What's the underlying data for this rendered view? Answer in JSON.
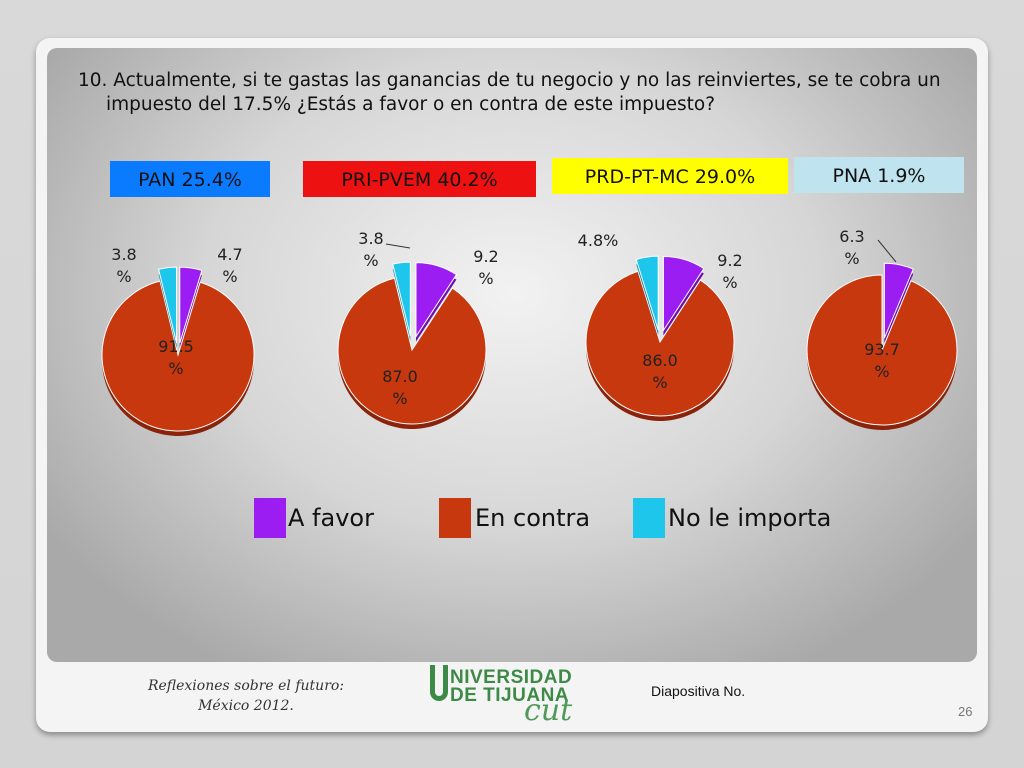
{
  "question": "10. Actualmente, si te gastas las ganancias de tu negocio y no las reinviertes, se te cobra un impuesto del 17.5% ¿Estás a favor o en contra de este impuesto?",
  "parties": [
    "PAN 25.4%",
    "PRI-PVEM  40.2%",
    "PRD-PT-MC 29.0%",
    "PNA 1.9%"
  ],
  "colors": {
    "a_favor": "#9b1df2",
    "en_contra": "#c8380e",
    "no_importa": "#1ec6ec"
  },
  "chart_data": [
    {
      "type": "pie",
      "title": "PAN 25.4%",
      "categories": [
        "A favor",
        "En contra",
        "No le importa"
      ],
      "values": [
        4.7,
        91.5,
        3.8
      ],
      "labels": [
        "4.7 %",
        "91.5 %",
        "3.8 %"
      ]
    },
    {
      "type": "pie",
      "title": "PRI-PVEM  40.2%",
      "categories": [
        "A favor",
        "En contra",
        "No le importa"
      ],
      "values": [
        9.2,
        87.0,
        3.8
      ],
      "labels": [
        "9.2 %",
        "87.0 %",
        "3.8 %"
      ]
    },
    {
      "type": "pie",
      "title": "PRD-PT-MC 29.0%",
      "categories": [
        "A favor",
        "En contra",
        "No le importa"
      ],
      "values": [
        9.2,
        86.0,
        4.8
      ],
      "labels": [
        "9.2 %",
        "86.0 %",
        "4.8%"
      ]
    },
    {
      "type": "pie",
      "title": "PNA 1.9%",
      "categories": [
        "A favor",
        "En contra",
        "No le importa"
      ],
      "values": [
        6.3,
        93.7,
        0
      ],
      "labels": [
        "6.3 %",
        "93.7 %",
        ""
      ]
    }
  ],
  "legend": [
    "A favor",
    "En contra",
    "No le importa"
  ],
  "footer": {
    "line1": "Reflexiones sobre el futuro:",
    "line2": "México 2012.",
    "logo_line1": "NIVERSIDAD",
    "logo_line2": "DE TIJUANA",
    "logo_cut": "cut",
    "diapositiva": "Diapositiva No.",
    "page": "26"
  }
}
